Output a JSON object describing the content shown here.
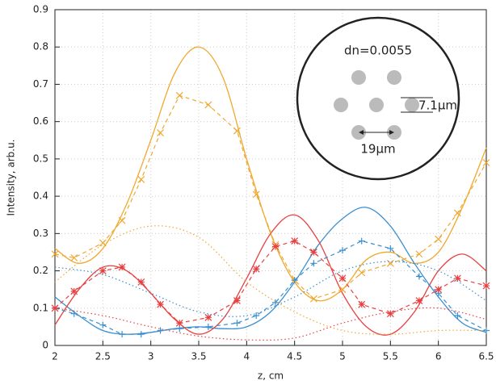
{
  "chart_data": {
    "type": "line",
    "xlabel": "z, cm",
    "ylabel": "Intensity, arb.u.",
    "xlim": [
      2,
      6.5
    ],
    "ylim": [
      0,
      0.9
    ],
    "xticks": [
      2,
      2.5,
      3,
      3.5,
      4,
      4.5,
      5,
      5.5,
      6,
      6.5
    ],
    "yticks": [
      0,
      0.1,
      0.2,
      0.3,
      0.4,
      0.5,
      0.6,
      0.7,
      0.8,
      0.9
    ],
    "grid": true,
    "annotations": [
      "dn=0.0055",
      "7.1μm",
      "19μm"
    ],
    "series": [
      {
        "color": "#f0a830",
        "dash": "solid",
        "x": [
          2,
          2.25,
          2.5,
          2.75,
          3,
          3.25,
          3.5,
          3.75,
          4,
          4.25,
          4.5,
          4.75,
          5,
          5.25,
          5.5,
          5.75,
          6,
          6.25,
          6.5
        ],
        "values": [
          0.26,
          0.22,
          0.26,
          0.38,
          0.55,
          0.73,
          0.8,
          0.72,
          0.5,
          0.3,
          0.17,
          0.12,
          0.15,
          0.23,
          0.25,
          0.22,
          0.25,
          0.37,
          0.53
        ]
      },
      {
        "color": "#3a8fd0",
        "dash": "solid",
        "x": [
          2,
          2.25,
          2.5,
          2.75,
          3,
          3.25,
          3.5,
          3.75,
          4,
          4.25,
          4.5,
          4.75,
          5,
          5.25,
          5.5,
          5.75,
          6,
          6.25,
          6.5
        ],
        "values": [
          0.13,
          0.08,
          0.04,
          0.03,
          0.035,
          0.045,
          0.05,
          0.045,
          0.05,
          0.09,
          0.17,
          0.27,
          0.34,
          0.37,
          0.32,
          0.22,
          0.13,
          0.06,
          0.035
        ]
      },
      {
        "color": "#e84040",
        "dash": "solid",
        "x": [
          2,
          2.25,
          2.5,
          2.75,
          3,
          3.25,
          3.5,
          3.75,
          4,
          4.25,
          4.5,
          4.75,
          5,
          5.25,
          5.5,
          5.75,
          6,
          6.25,
          6.5
        ],
        "values": [
          0.055,
          0.15,
          0.21,
          0.2,
          0.14,
          0.07,
          0.03,
          0.07,
          0.18,
          0.3,
          0.35,
          0.28,
          0.14,
          0.05,
          0.03,
          0.09,
          0.2,
          0.245,
          0.2
        ]
      },
      {
        "color": "#f0a830",
        "dash": "dashed",
        "marker": "x",
        "x": [
          2,
          2.2,
          2.5,
          2.7,
          2.9,
          3.1,
          3.3,
          3.6,
          3.9,
          4.1,
          4.3,
          4.5,
          4.7,
          5,
          5.2,
          5.5,
          5.8,
          6,
          6.2,
          6.5
        ],
        "values": [
          0.245,
          0.235,
          0.275,
          0.335,
          0.445,
          0.57,
          0.67,
          0.645,
          0.575,
          0.405,
          0.27,
          0.175,
          0.125,
          0.15,
          0.195,
          0.22,
          0.245,
          0.285,
          0.355,
          0.49
        ]
      },
      {
        "color": "#3a8fd0",
        "dash": "dashed",
        "marker": "+",
        "x": [
          2,
          2.2,
          2.5,
          2.7,
          2.9,
          3.1,
          3.3,
          3.6,
          3.9,
          4.1,
          4.3,
          4.5,
          4.7,
          5,
          5.2,
          5.5,
          5.8,
          6,
          6.2,
          6.5
        ],
        "values": [
          0.1,
          0.085,
          0.055,
          0.03,
          0.03,
          0.04,
          0.045,
          0.05,
          0.06,
          0.08,
          0.115,
          0.175,
          0.22,
          0.255,
          0.28,
          0.26,
          0.185,
          0.14,
          0.08,
          0.04
        ]
      },
      {
        "color": "#e84040",
        "dash": "dashed",
        "marker": "*",
        "x": [
          2,
          2.2,
          2.5,
          2.7,
          2.9,
          3.1,
          3.3,
          3.6,
          3.9,
          4.1,
          4.3,
          4.5,
          4.7,
          5,
          5.2,
          5.5,
          5.8,
          6,
          6.2,
          6.5
        ],
        "values": [
          0.1,
          0.145,
          0.2,
          0.21,
          0.17,
          0.11,
          0.06,
          0.075,
          0.12,
          0.205,
          0.265,
          0.28,
          0.25,
          0.18,
          0.11,
          0.085,
          0.12,
          0.15,
          0.18,
          0.16
        ]
      },
      {
        "color": "#f0a830",
        "dash": "dotted",
        "x": [
          2,
          2.5,
          3,
          3.5,
          4,
          4.5,
          5,
          5.5,
          6,
          6.5
        ],
        "values": [
          0.17,
          0.27,
          0.32,
          0.29,
          0.17,
          0.09,
          0.04,
          0.03,
          0.04,
          0.04
        ]
      },
      {
        "color": "#3a8fd0",
        "dash": "dotted",
        "x": [
          2,
          2.5,
          3,
          3.5,
          4,
          4.5,
          5,
          5.5,
          6,
          6.5
        ],
        "values": [
          0.21,
          0.19,
          0.14,
          0.09,
          0.08,
          0.13,
          0.2,
          0.225,
          0.2,
          0.12
        ]
      },
      {
        "color": "#e84040",
        "dash": "dotted",
        "x": [
          2,
          2.5,
          3,
          3.5,
          4,
          4.5,
          5,
          5.5,
          6,
          6.5
        ],
        "values": [
          0.1,
          0.08,
          0.05,
          0.025,
          0.015,
          0.02,
          0.06,
          0.09,
          0.1,
          0.07
        ]
      }
    ]
  }
}
